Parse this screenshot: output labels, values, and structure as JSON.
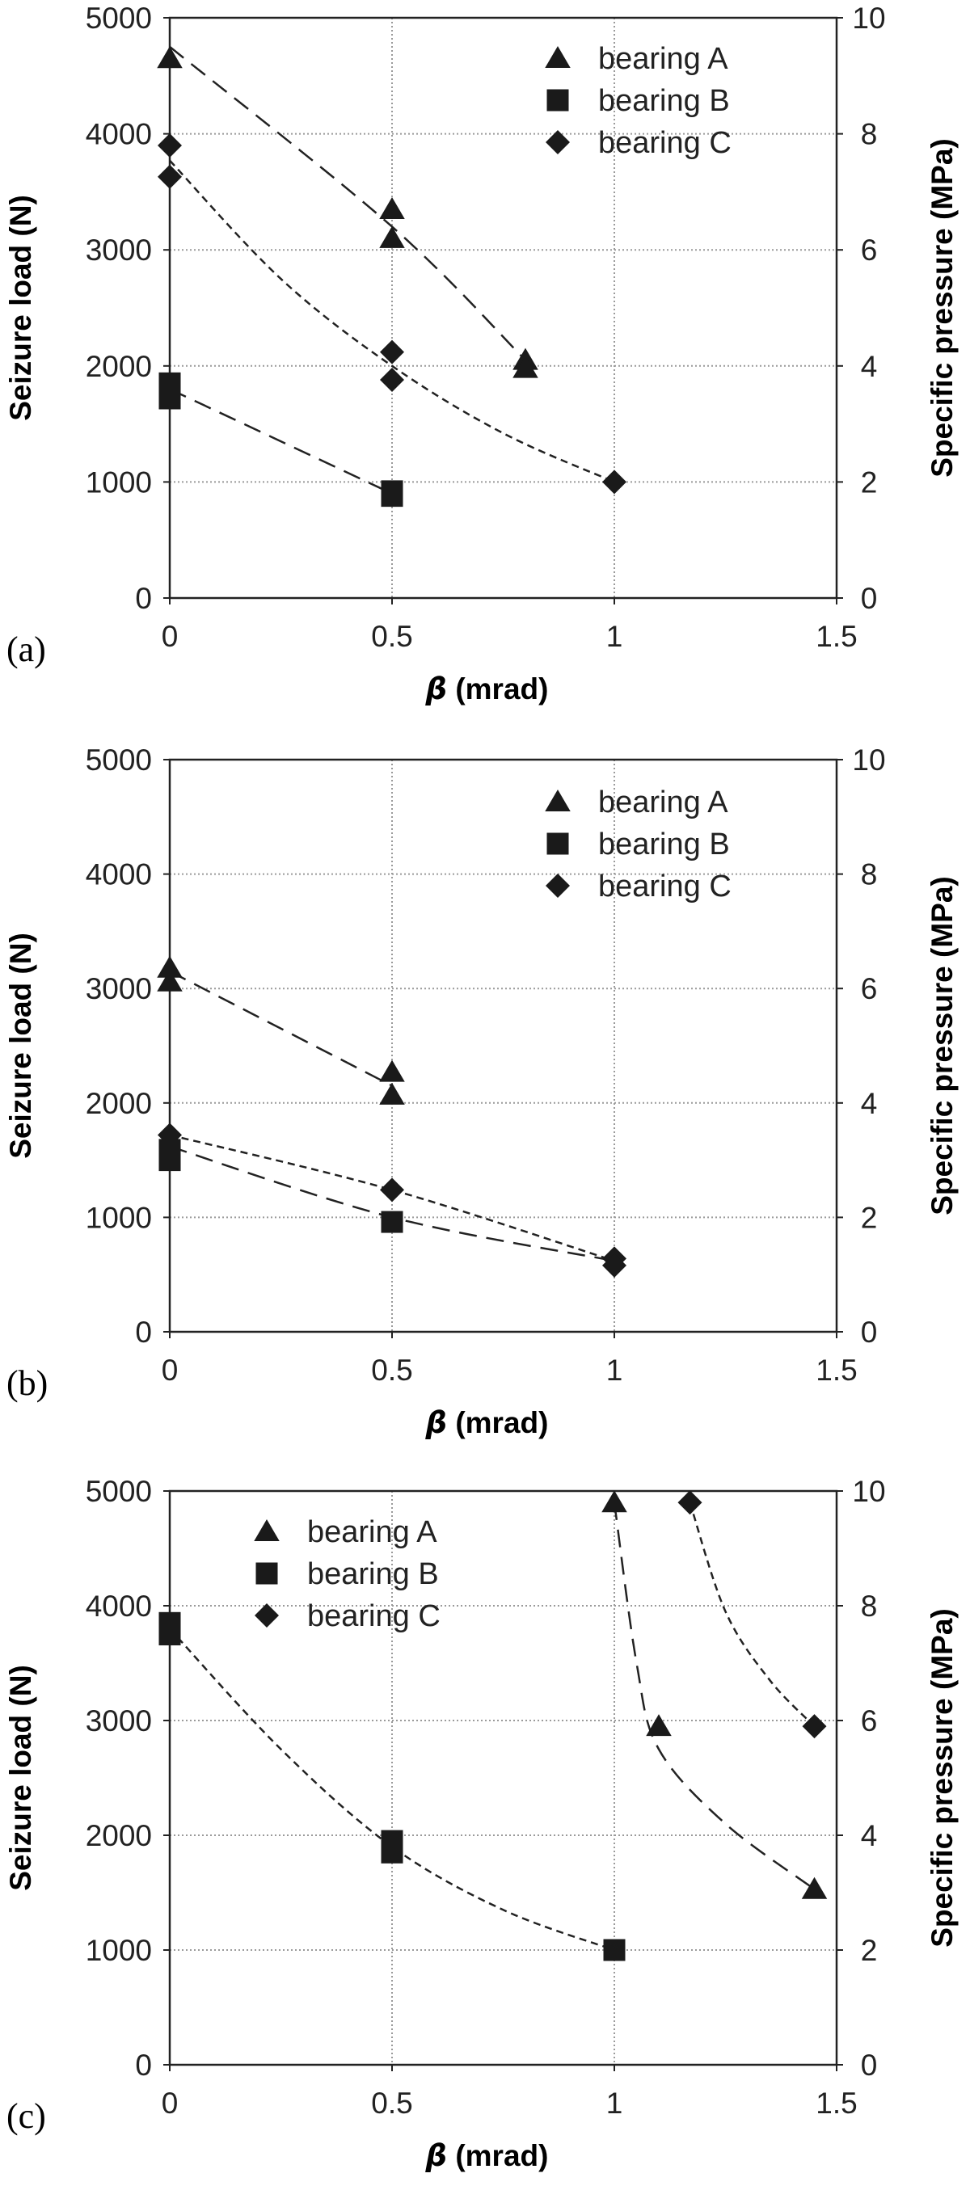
{
  "chart_data": [
    {
      "type": "scatter",
      "panel_label": "(a)",
      "xlabel_symbol": "β",
      "xlabel_unit": " (mrad)",
      "ylabel": "Seizure load (N)",
      "y2label": "Specific pressure  (MPa)",
      "xlim": [
        0,
        1.5
      ],
      "ylim": [
        0,
        5000
      ],
      "y2lim": [
        0,
        10
      ],
      "xticks": [
        "0",
        "0.5",
        "1",
        "1.5"
      ],
      "yticks": [
        "0",
        "1000",
        "2000",
        "3000",
        "4000",
        "5000"
      ],
      "y2ticks": [
        "0",
        "2",
        "4",
        "6",
        "8",
        "10"
      ],
      "grid": true,
      "legend_position": "top-right",
      "series": [
        {
          "name": "bearing A",
          "marker": "triangle",
          "x": [
            0,
            0.5,
            0.5,
            0.8,
            0.8
          ],
          "y": [
            4650,
            3350,
            3100,
            2050,
            1980
          ],
          "fit_x": [
            0,
            0.5,
            0.8
          ],
          "fit_y": [
            4750,
            3200,
            2050
          ],
          "dash": "long"
        },
        {
          "name": "bearing B",
          "marker": "square",
          "x": [
            0,
            0,
            0.5,
            0.5
          ],
          "y": [
            1850,
            1720,
            920,
            880
          ],
          "fit_x": [
            0,
            0.5
          ],
          "fit_y": [
            1800,
            900
          ],
          "dash": "long"
        },
        {
          "name": "bearing C",
          "marker": "diamond",
          "x": [
            0,
            0,
            0.5,
            0.5,
            1.0
          ],
          "y": [
            3900,
            3630,
            2120,
            1880,
            1000
          ],
          "fit_x": [
            0,
            0.25,
            0.5,
            0.75,
            1.0
          ],
          "fit_y": [
            3770,
            2750,
            2000,
            1420,
            1000
          ],
          "dash": "short"
        }
      ]
    },
    {
      "type": "scatter",
      "panel_label": "(b)",
      "xlabel_symbol": "β",
      "xlabel_unit": " (mrad)",
      "ylabel": "Seizure load (N)",
      "y2label": "Specific pressure  (MPa)",
      "xlim": [
        0,
        1.5
      ],
      "ylim": [
        0,
        5000
      ],
      "y2lim": [
        0,
        10
      ],
      "xticks": [
        "0",
        "0.5",
        "1",
        "1.5"
      ],
      "yticks": [
        "0",
        "1000",
        "2000",
        "3000",
        "4000",
        "5000"
      ],
      "y2ticks": [
        "0",
        "2",
        "4",
        "6",
        "8",
        "10"
      ],
      "grid": true,
      "legend_position": "top-right",
      "series": [
        {
          "name": "bearing A",
          "marker": "triangle",
          "x": [
            0,
            0,
            0.5,
            0.5
          ],
          "y": [
            3180,
            3060,
            2270,
            2070
          ],
          "fit_x": [
            0,
            0.5
          ],
          "fit_y": [
            3150,
            2150
          ],
          "dash": "long"
        },
        {
          "name": "bearing B",
          "marker": "square",
          "x": [
            0,
            0,
            0.5
          ],
          "y": [
            1590,
            1500,
            960
          ],
          "fit_x": [
            0,
            0.5,
            1.0
          ],
          "fit_y": [
            1620,
            1000,
            620
          ],
          "dash": "long"
        },
        {
          "name": "bearing C",
          "marker": "diamond",
          "x": [
            0,
            0.5,
            1.0,
            1.0
          ],
          "y": [
            1720,
            1240,
            640,
            580
          ],
          "fit_x": [
            0,
            0.5,
            1.0
          ],
          "fit_y": [
            1720,
            1240,
            620
          ],
          "dash": "short"
        }
      ]
    },
    {
      "type": "scatter",
      "panel_label": "(c)",
      "xlabel_symbol": "β",
      "xlabel_unit": " (mrad)",
      "ylabel": "Seizure load (N)",
      "y2label": "Specific pressure  (MPa)",
      "xlim": [
        0,
        1.5
      ],
      "ylim": [
        0,
        5000
      ],
      "y2lim": [
        0,
        10
      ],
      "xticks": [
        "0",
        "0.5",
        "1",
        "1.5"
      ],
      "yticks": [
        "0",
        "1000",
        "2000",
        "3000",
        "4000",
        "5000"
      ],
      "y2ticks": [
        "0",
        "2",
        "4",
        "6",
        "8",
        "10"
      ],
      "grid": true,
      "legend_position": "top-left",
      "series": [
        {
          "name": "bearing A",
          "marker": "triangle",
          "x": [
            1.0,
            1.1,
            1.45
          ],
          "y": [
            4900,
            2950,
            1530
          ],
          "fit_x": [
            1.0,
            1.05,
            1.1,
            1.25,
            1.45
          ],
          "fit_y": [
            4900,
            3500,
            2750,
            2100,
            1530
          ],
          "dash": "long"
        },
        {
          "name": "bearing B",
          "marker": "square",
          "x": [
            0,
            0,
            0.5,
            0.5,
            1.0
          ],
          "y": [
            3850,
            3750,
            1950,
            1850,
            1000
          ],
          "fit_x": [
            0,
            0.25,
            0.5,
            0.75,
            1.0
          ],
          "fit_y": [
            3800,
            2750,
            1900,
            1350,
            1000
          ],
          "dash": "short"
        },
        {
          "name": "bearing C",
          "marker": "diamond",
          "x": [
            1.17,
            1.45
          ],
          "y": [
            4900,
            2950
          ],
          "fit_x": [
            1.17,
            1.25,
            1.35,
            1.45
          ],
          "fit_y": [
            4900,
            3950,
            3350,
            2950
          ],
          "dash": "short"
        }
      ]
    }
  ]
}
